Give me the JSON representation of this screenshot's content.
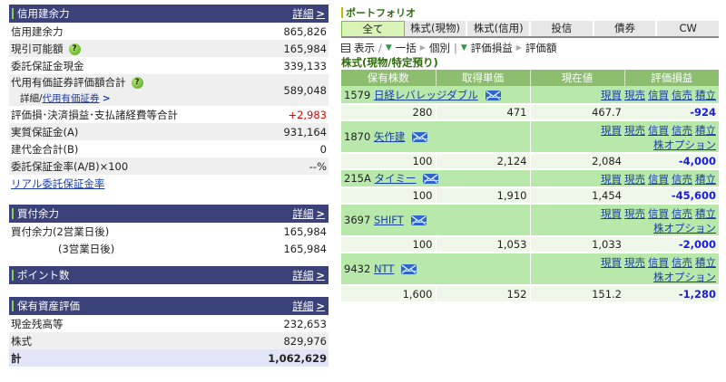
{
  "credit": {
    "title": "信用建余力",
    "detail_label": "詳細",
    "rows": [
      {
        "label": "信用建余力",
        "value": "865,826"
      },
      {
        "label": "現引可能額",
        "value": "165,984",
        "help": "?"
      },
      {
        "label": "委託保証金現金",
        "value": "339,133"
      },
      {
        "label": "代用有価証券評価額合計",
        "value": "589,048",
        "help": "?",
        "sub_prefix": "詳細/",
        "sub_link": "代用有価証券"
      },
      {
        "label": "評価損･決済損益･支払諸経費等合計",
        "value": "+2,983"
      },
      {
        "label": "実質保証金(A)",
        "value": "931,164"
      },
      {
        "label": "建代金合計(B)",
        "value": "0"
      },
      {
        "label": "委託保証金率(A/B)×100",
        "value": "--%"
      }
    ],
    "real_rate_link": "リアル委託保証金率"
  },
  "buying": {
    "title": "買付余力",
    "detail_label": "詳細",
    "rows": [
      {
        "label": "買付余力(2営業日後)",
        "value": "165,984"
      },
      {
        "label": "(3営業日後)",
        "value": "165,984"
      }
    ]
  },
  "points": {
    "title": "ポイント数",
    "detail_label": "詳細"
  },
  "assets": {
    "title": "保有資産評価",
    "detail_label": "詳細",
    "rows": [
      {
        "label": "現金残高等",
        "value": "232,653"
      },
      {
        "label": "株式",
        "value": "829,976"
      },
      {
        "label": "計",
        "value": "1,062,629"
      }
    ]
  },
  "portfolio": {
    "title": "ポートフォリオ",
    "tabs": [
      "全て",
      "株式(現物)",
      "株式(信用)",
      "投信",
      "債券",
      "CW"
    ],
    "active_tab": 0,
    "toolbar": {
      "view_label": "表示",
      "sep": "/",
      "bulk": "一括",
      "individual": "個別",
      "pipe": "|",
      "eval_pl": "評価損益",
      "eval_amount": "評価額"
    },
    "section_title": "株式(現物/特定預り)",
    "columns": [
      "保有株数",
      "取得単価",
      "現在値",
      "評価損益"
    ],
    "actions": [
      "現買",
      "現売",
      "信買",
      "信売",
      "積立"
    ],
    "option_label": "株オプション",
    "holdings": [
      {
        "code": "1579",
        "name": "日経レバレッジダブル",
        "shares": "280",
        "cost": "471",
        "price": "467.7",
        "pl": "-924",
        "has_option": false
      },
      {
        "code": "1870",
        "name": "矢作建",
        "shares": "100",
        "cost": "2,124",
        "price": "2,084",
        "pl": "-4,000",
        "has_option": true
      },
      {
        "code": "215A",
        "name": "タイミー",
        "shares": "100",
        "cost": "1,910",
        "price": "1,454",
        "pl": "-45,600",
        "has_option": false
      },
      {
        "code": "3697",
        "name": "SHIFT",
        "shares": "100",
        "cost": "1,053",
        "price": "1,033",
        "pl": "-2,000",
        "has_option": true
      },
      {
        "code": "9432",
        "name": "NTT",
        "shares": "1,600",
        "cost": "152",
        "price": "151.2",
        "pl": "-1,280",
        "has_option": true
      }
    ]
  },
  "colors": {
    "section_header": "#3b4279",
    "accent_green": "#8ad14b",
    "positive": "#e00000",
    "negative": "#1b1bdf",
    "table_header": "#8dbe70",
    "name_row": "#b9e9aa"
  }
}
